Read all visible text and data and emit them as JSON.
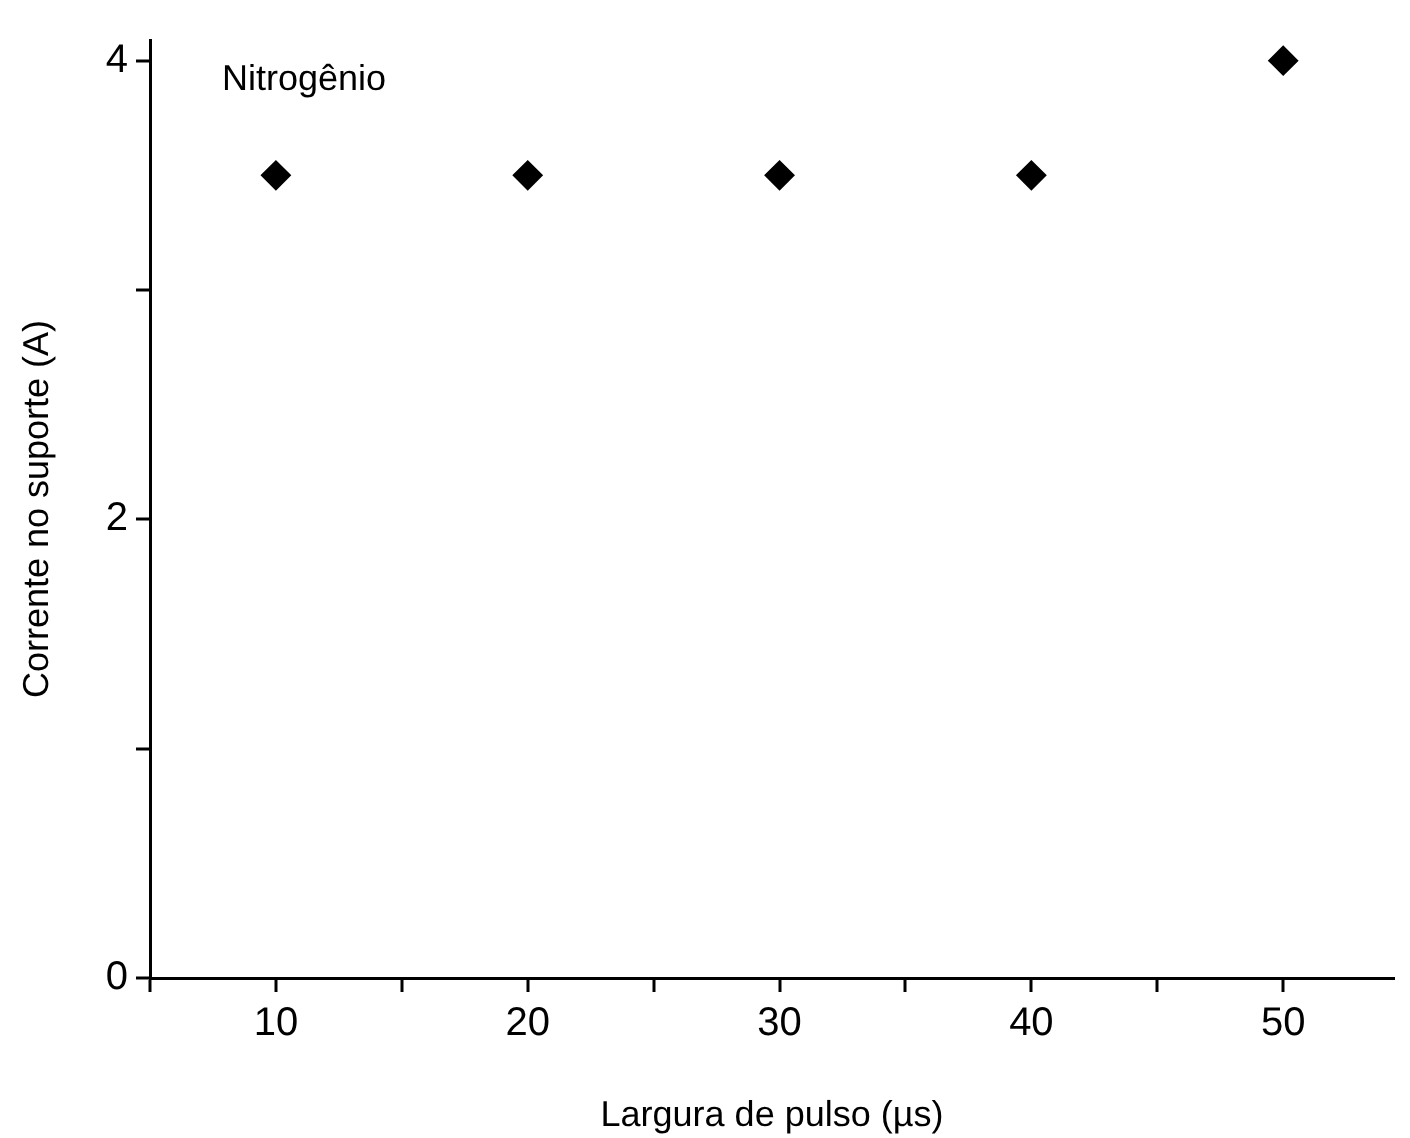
{
  "chart_data": {
    "type": "scatter",
    "xlabel": "Largura de pulso (µs)",
    "ylabel": "Corrente no suporte (A)",
    "annotations": [
      "Nitrogênio"
    ],
    "x": [
      10,
      20,
      30,
      40,
      50
    ],
    "series": [
      {
        "color": "#000000",
        "values": [
          3.5,
          3.5,
          3.5,
          3.5,
          4
        ]
      }
    ],
    "xlim": [
      5,
      54.4
    ],
    "xticks": [
      {
        "value": 5,
        "label": null
      },
      10,
      {
        "value": 15,
        "label": null
      },
      20,
      {
        "value": 25,
        "label": null
      },
      30,
      {
        "value": 35,
        "label": null
      },
      40,
      {
        "value": 45,
        "label": null
      },
      50
    ],
    "ylim": [
      0,
      4.09
    ],
    "yticks": [
      0,
      {
        "value": 1,
        "label": null
      },
      2,
      {
        "value": 3,
        "label": null
      },
      4
    ],
    "grid": false,
    "legend": false,
    "marker": "diamond"
  }
}
